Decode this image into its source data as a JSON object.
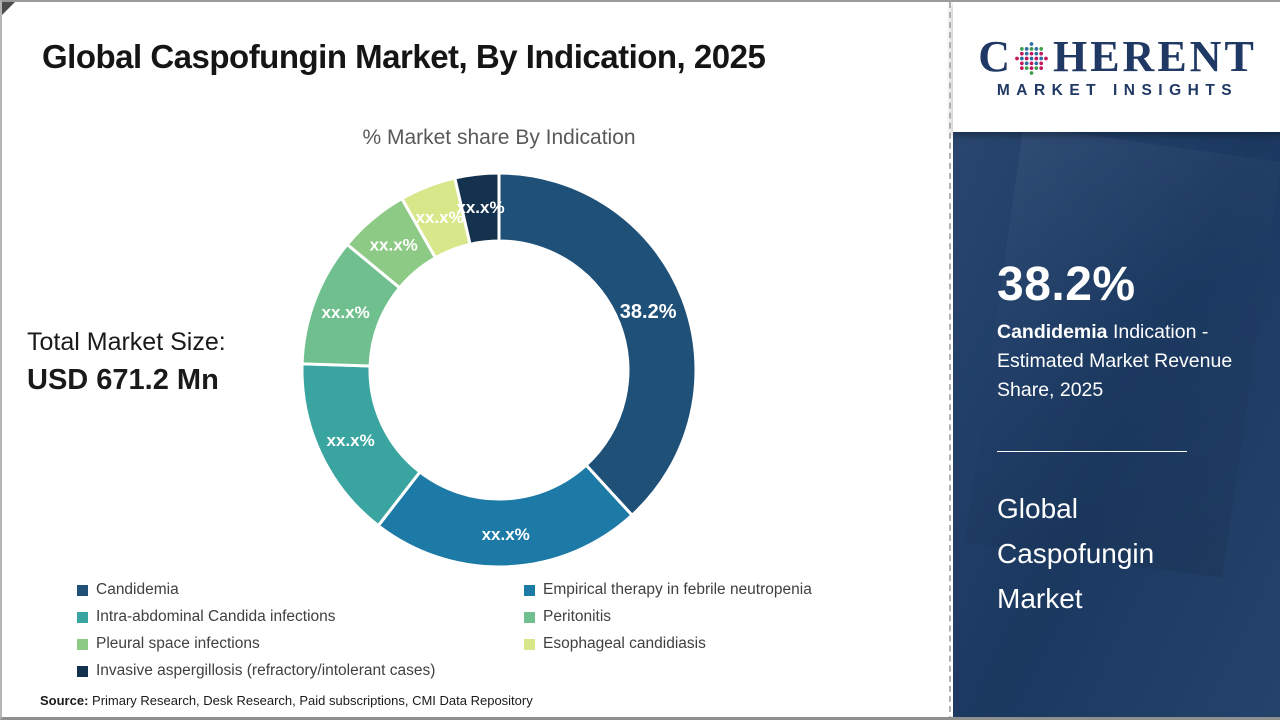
{
  "frame": {
    "title": "Global Caspofungin Market, By Indication, 2025"
  },
  "chart_data": {
    "type": "pie",
    "subtype": "donut",
    "title": "% Market share By Indication",
    "unit": "%",
    "legend_position": "bottom",
    "annotation": {
      "label": "Total Market Size:",
      "value": "USD 671.2 Mn"
    },
    "segments": [
      {
        "label": "Candidemia",
        "display_label": "38.2%",
        "value": 38.2,
        "color": "#1f5078"
      },
      {
        "label": "Empirical therapy in febrile neutropenia",
        "display_label": "xx.x%",
        "value": 22.3,
        "color": "#1d7aa6"
      },
      {
        "label": "Intra-abdominal Candida infections",
        "display_label": "xx.x%",
        "value": 15.0,
        "color": "#3aa5a0"
      },
      {
        "label": "Peritonitis",
        "display_label": "xx.x%",
        "value": 10.5,
        "color": "#70c08f"
      },
      {
        "label": "Pleural space infections",
        "display_label": "xx.x%",
        "value": 5.8,
        "color": "#8dca85"
      },
      {
        "label": "Esophageal candidiasis",
        "display_label": "xx.x%",
        "value": 4.6,
        "color": "#d7e78a"
      },
      {
        "label": "Invasive aspergillosis (refractory/intolerant cases)",
        "display_label": "xx.x%",
        "value": 3.6,
        "color": "#14324d"
      }
    ]
  },
  "logo": {
    "word_c": "C",
    "word_rest": "HERENT",
    "tagline": "MARKET INSIGHTS",
    "brand_navy": "#1f3864",
    "dot_colors": [
      "#3f9d4e",
      "#2e6da4",
      "#c2185b"
    ]
  },
  "side_panel": {
    "background": "#1d3c66",
    "stat_value": "38.2%",
    "stat_bold": "Candidemia",
    "stat_text": " Indication - Estimated Market Revenue Share, 2025",
    "panel_title": "Global Caspofungin Market"
  },
  "source": {
    "label": "Source:",
    "text": " Primary Research, Desk Research, Paid subscriptions, CMI Data Repository"
  }
}
